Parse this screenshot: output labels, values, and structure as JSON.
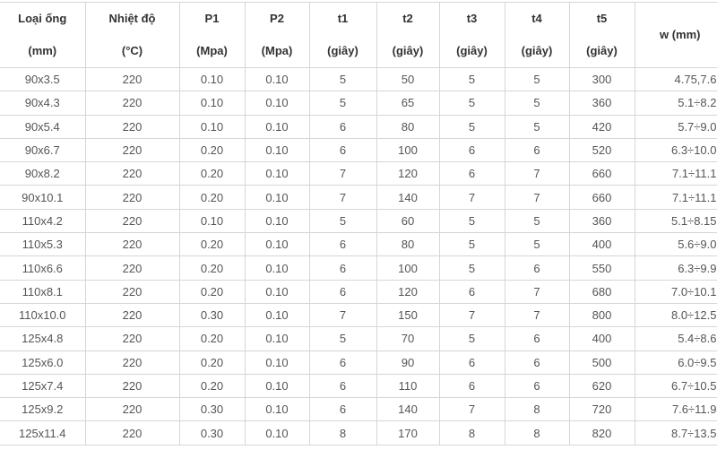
{
  "headers": [
    {
      "top": "Loại ống",
      "bottom": "(mm)"
    },
    {
      "top": "Nhiệt độ",
      "bottom": "(°C)"
    },
    {
      "top": "P1",
      "bottom": "(Mpa)"
    },
    {
      "top": "P2",
      "bottom": "(Mpa)"
    },
    {
      "top": "t1",
      "bottom": "(giây)"
    },
    {
      "top": "t2",
      "bottom": "(giây)"
    },
    {
      "top": "t3",
      "bottom": "(giây)"
    },
    {
      "top": "t4",
      "bottom": "(giây)"
    },
    {
      "top": "t5",
      "bottom": "(giây)"
    },
    {
      "top": "w (mm)",
      "bottom": ""
    }
  ],
  "rows": [
    [
      "90x3.5",
      "220",
      "0.10",
      "0.10",
      "5",
      "50",
      "5",
      "5",
      "300",
      "4.75,7.6"
    ],
    [
      "90x4.3",
      "220",
      "0.10",
      "0.10",
      "5",
      "65",
      "5",
      "5",
      "360",
      "5.1÷8.2"
    ],
    [
      "90x5.4",
      "220",
      "0.10",
      "0.10",
      "6",
      "80",
      "5",
      "5",
      "420",
      "5.7÷9.0"
    ],
    [
      "90x6.7",
      "220",
      "0.20",
      "0.10",
      "6",
      "100",
      "6",
      "6",
      "520",
      "6.3÷10.0"
    ],
    [
      "90x8.2",
      "220",
      "0.20",
      "0.10",
      "7",
      "120",
      "6",
      "7",
      "660",
      "7.1÷11.1"
    ],
    [
      "90x10.1",
      "220",
      "0.20",
      "0.10",
      "7",
      "140",
      "7",
      "7",
      "660",
      "7.1÷11.1"
    ],
    [
      "110x4.2",
      "220",
      "0.10",
      "0.10",
      "5",
      "60",
      "5",
      "5",
      "360",
      "5.1÷8.15"
    ],
    [
      "110x5.3",
      "220",
      "0.20",
      "0.10",
      "6",
      "80",
      "5",
      "5",
      "400",
      "5.6÷9.0"
    ],
    [
      "110x6.6",
      "220",
      "0.20",
      "0.10",
      "6",
      "100",
      "5",
      "6",
      "550",
      "6.3÷9.9"
    ],
    [
      "110x8.1",
      "220",
      "0.20",
      "0.10",
      "6",
      "120",
      "6",
      "7",
      "680",
      "7.0÷10.1"
    ],
    [
      "110x10.0",
      "220",
      "0.30",
      "0.10",
      "7",
      "150",
      "7",
      "7",
      "800",
      "8.0÷12.5"
    ],
    [
      "125x4.8",
      "220",
      "0.20",
      "0.10",
      "5",
      "70",
      "5",
      "6",
      "400",
      "5.4÷8.6"
    ],
    [
      "125x6.0",
      "220",
      "0.20",
      "0.10",
      "6",
      "90",
      "6",
      "6",
      "500",
      "6.0÷9.5"
    ],
    [
      "125x7.4",
      "220",
      "0.20",
      "0.10",
      "6",
      "110",
      "6",
      "6",
      "620",
      "6.7÷10.5"
    ],
    [
      "125x9.2",
      "220",
      "0.30",
      "0.10",
      "6",
      "140",
      "7",
      "8",
      "720",
      "7.6÷11.9"
    ],
    [
      "125x11.4",
      "220",
      "0.30",
      "0.10",
      "8",
      "170",
      "8",
      "8",
      "820",
      "8.7÷13.5"
    ]
  ]
}
